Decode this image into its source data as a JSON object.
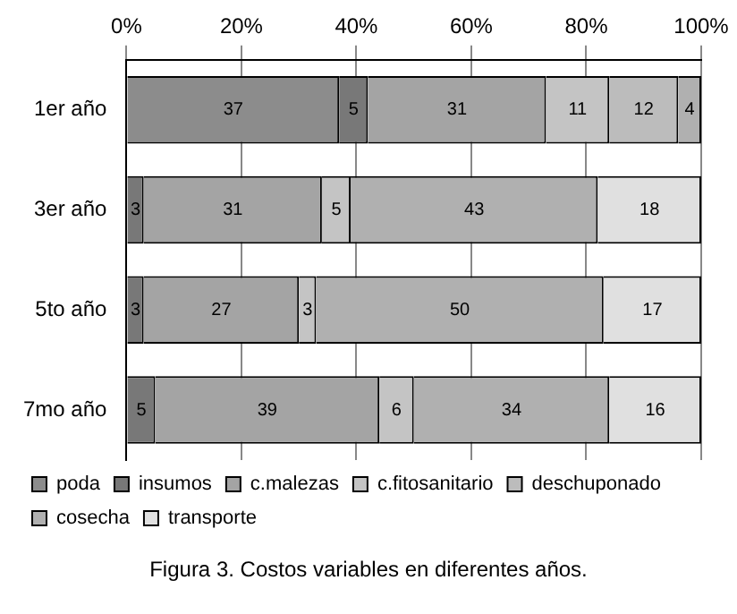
{
  "chart_data": {
    "type": "bar",
    "orientation": "horizontal",
    "stacked": true,
    "categories": [
      "1er año",
      "3er año",
      "5to año",
      "7mo año"
    ],
    "series": [
      {
        "name": "poda",
        "color": "#8c8c8c",
        "values": [
          37,
          0,
          0,
          0
        ],
        "value_labels": [
          "37",
          null,
          null,
          null
        ]
      },
      {
        "name": "insumos",
        "color": "#787878",
        "values": [
          5,
          3,
          3,
          5
        ],
        "value_labels": [
          "5",
          "3",
          "3",
          "5"
        ]
      },
      {
        "name": "c.malezas",
        "color": "#a4a4a4",
        "values": [
          31,
          31,
          27,
          39
        ],
        "value_labels": [
          "31",
          "31",
          "27",
          "39"
        ]
      },
      {
        "name": "c.fitosanitario",
        "color": "#c4c4c4",
        "values": [
          11,
          5,
          3,
          6
        ],
        "value_labels": [
          "11",
          "5",
          "3",
          "6"
        ]
      },
      {
        "name": "deschuponado",
        "color": "#bcbcbc",
        "values": [
          12,
          0,
          0,
          0
        ],
        "value_labels": [
          "12",
          null,
          null,
          null
        ]
      },
      {
        "name": "cosecha",
        "color": "#b0b0b0",
        "values": [
          4,
          43,
          50,
          34
        ],
        "value_labels": [
          "4",
          "43",
          "50",
          "34"
        ]
      },
      {
        "name": "transporte",
        "color": "#e0e0e0",
        "values": [
          0,
          18,
          17,
          16
        ],
        "value_labels": [
          null,
          "18",
          "17",
          "16"
        ]
      }
    ],
    "xlim": [
      0,
      100
    ],
    "xticks": [
      {
        "value": 0,
        "label": "0%"
      },
      {
        "value": 20,
        "label": "20%"
      },
      {
        "value": 40,
        "label": "40%"
      },
      {
        "value": 60,
        "label": "60%"
      },
      {
        "value": 80,
        "label": "80%"
      },
      {
        "value": 100,
        "label": "100%"
      }
    ],
    "grid": "x",
    "legend": "bottom",
    "annotations": [
      "Figura 3. Costos variables en diferentes años."
    ]
  }
}
